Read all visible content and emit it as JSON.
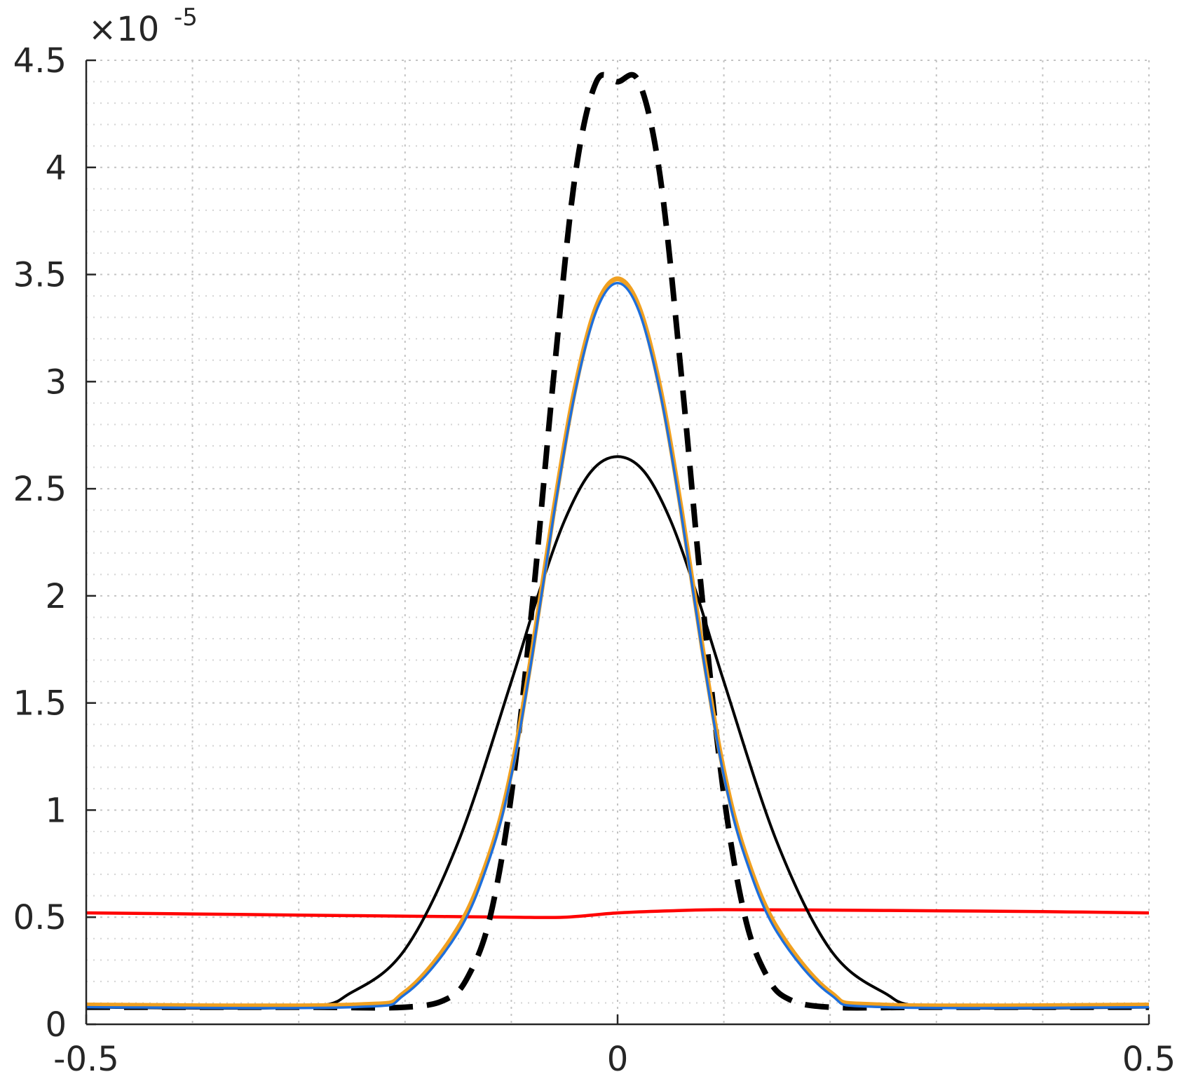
{
  "chart_data": {
    "type": "line",
    "title": "",
    "xlabel": "",
    "ylabel": "",
    "xlim": [
      -0.5,
      0.5
    ],
    "ylim": [
      0,
      4.5
    ],
    "y_exponent_label": "×10",
    "y_exponent_power": "-5",
    "x_ticks": [
      {
        "value": -0.5,
        "label": "-0.5"
      },
      {
        "value": 0,
        "label": "0"
      },
      {
        "value": 0.5,
        "label": "0.5"
      }
    ],
    "y_ticks": [
      {
        "value": 0,
        "label": "0"
      },
      {
        "value": 0.5,
        "label": "0.5"
      },
      {
        "value": 1,
        "label": "1"
      },
      {
        "value": 1.5,
        "label": "1.5"
      },
      {
        "value": 2,
        "label": "2"
      },
      {
        "value": 2.5,
        "label": "2.5"
      },
      {
        "value": 3,
        "label": "3"
      },
      {
        "value": 3.5,
        "label": "3.5"
      },
      {
        "value": 4,
        "label": "4"
      },
      {
        "value": 4.5,
        "label": "4.5"
      }
    ],
    "grid": true,
    "minor_grid": true,
    "series": [
      {
        "color": "#ff0000",
        "style": "solid",
        "x": [
          -0.5,
          -0.4,
          -0.3,
          -0.2,
          -0.1,
          -0.05,
          0,
          0.05,
          0.1,
          0.2,
          0.3,
          0.4,
          0.5
        ],
        "y": [
          0.52,
          0.515,
          0.51,
          0.505,
          0.5,
          0.5,
          0.52,
          0.53,
          0.535,
          0.533,
          0.53,
          0.526,
          0.52
        ]
      },
      {
        "color": "#000000",
        "style": "dashed",
        "x": [
          -0.5,
          -0.3,
          -0.2,
          -0.16,
          -0.14,
          -0.12,
          -0.1,
          -0.08,
          -0.06,
          -0.04,
          -0.02,
          0,
          0.02,
          0.04,
          0.06,
          0.08,
          0.1,
          0.12,
          0.14,
          0.16,
          0.2,
          0.3,
          0.5
        ],
        "y": [
          0.08,
          0.08,
          0.08,
          0.12,
          0.23,
          0.5,
          1.07,
          1.97,
          3.03,
          3.96,
          4.4,
          4.4,
          4.4,
          3.96,
          3.03,
          1.97,
          1.07,
          0.5,
          0.23,
          0.12,
          0.08,
          0.08,
          0.08
        ]
      },
      {
        "color": "#000000",
        "style": "solid",
        "x": [
          -0.5,
          -0.3,
          -0.25,
          -0.2,
          -0.15,
          -0.1,
          -0.075,
          -0.05,
          -0.025,
          0,
          0.025,
          0.05,
          0.075,
          0.1,
          0.15,
          0.2,
          0.25,
          0.3,
          0.5
        ],
        "y": [
          0.08,
          0.08,
          0.15,
          0.35,
          0.85,
          1.6,
          2.0,
          2.35,
          2.58,
          2.65,
          2.58,
          2.35,
          2.0,
          1.6,
          0.85,
          0.35,
          0.15,
          0.08,
          0.08
        ]
      },
      {
        "color": "#f0a020",
        "style": "solid",
        "x": [
          -0.5,
          -0.25,
          -0.2,
          -0.15,
          -0.12,
          -0.1,
          -0.08,
          -0.06,
          -0.04,
          -0.02,
          0,
          0.02,
          0.04,
          0.06,
          0.08,
          0.1,
          0.12,
          0.15,
          0.2,
          0.25,
          0.5
        ],
        "y": [
          0.09,
          0.09,
          0.15,
          0.45,
          0.8,
          1.18,
          1.75,
          2.4,
          2.97,
          3.35,
          3.48,
          3.35,
          2.97,
          2.4,
          1.75,
          1.18,
          0.8,
          0.45,
          0.15,
          0.09,
          0.09
        ]
      },
      {
        "color": "#1e6fdc",
        "style": "solid",
        "x": [
          -0.5,
          -0.25,
          -0.2,
          -0.15,
          -0.12,
          -0.1,
          -0.08,
          -0.06,
          -0.04,
          -0.02,
          0,
          0.02,
          0.04,
          0.06,
          0.08,
          0.1,
          0.12,
          0.15,
          0.2,
          0.25,
          0.5
        ],
        "y": [
          0.08,
          0.08,
          0.14,
          0.43,
          0.78,
          1.16,
          1.73,
          2.38,
          2.95,
          3.33,
          3.46,
          3.33,
          2.95,
          2.38,
          1.73,
          1.16,
          0.78,
          0.43,
          0.14,
          0.08,
          0.08
        ]
      }
    ]
  }
}
